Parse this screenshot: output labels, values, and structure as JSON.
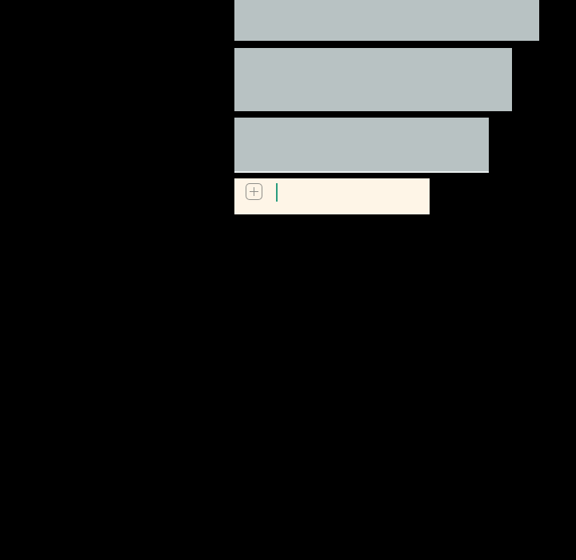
{
  "colors": {
    "message_block": "#b8c2c3",
    "input_background": "#fef5e7",
    "cursor": "#2a9d7f",
    "background": "#000000"
  },
  "composer": {
    "add_icon": "plus-square-icon",
    "value": ""
  }
}
